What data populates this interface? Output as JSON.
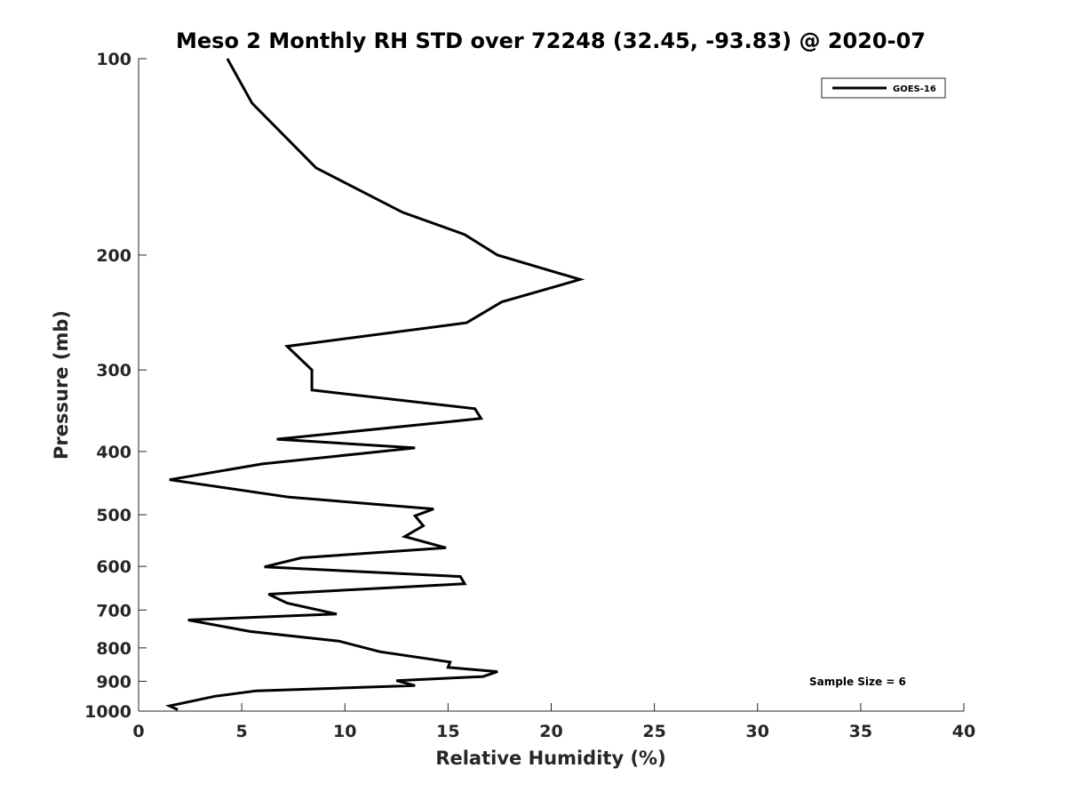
{
  "chart_data": {
    "type": "line",
    "title": "Meso 2 Monthly RH STD over 72248 (32.45, -93.83) @ 2020-07",
    "xlabel": "Relative Humidity (%)",
    "ylabel": "Pressure (mb)",
    "xlim": [
      0,
      40
    ],
    "ylim": [
      100,
      1000
    ],
    "y_scale": "log",
    "y_reversed": true,
    "x_ticks": [
      "0",
      "5",
      "10",
      "15",
      "20",
      "25",
      "30",
      "35",
      "40"
    ],
    "y_ticks": [
      "100",
      "200",
      "300",
      "400",
      "500",
      "600",
      "700",
      "800",
      "900",
      "1000"
    ],
    "grid": false,
    "legend_position": "top-right",
    "annotation": "Sample Size = 6",
    "series": [
      {
        "name": "GOES-16",
        "color": "#000000",
        "x": [
          4.3,
          5.5,
          8.6,
          12.8,
          15.8,
          17.4,
          21.4,
          17.6,
          15.9,
          7.2,
          8.4,
          8.4,
          16.3,
          16.6,
          6.7,
          13.4,
          6.0,
          1.5,
          7.3,
          14.3,
          13.4,
          13.8,
          12.9,
          14.9,
          7.9,
          6.1,
          15.6,
          15.8,
          6.3,
          7.2,
          9.6,
          2.4,
          5.4,
          9.7,
          11.7,
          15.1,
          15.0,
          17.4,
          16.7,
          12.5,
          13.4,
          5.7,
          3.7,
          1.5,
          1.9
        ],
        "y": [
          100,
          117,
          147,
          172,
          186,
          200,
          218,
          236,
          254,
          276,
          300,
          322,
          344,
          356,
          383,
          395,
          418,
          442,
          470,
          490,
          502,
          520,
          540,
          562,
          582,
          601,
          622,
          638,
          662,
          683,
          710,
          725,
          755,
          781,
          811,
          841,
          857,
          870,
          885,
          898,
          914,
          931,
          949,
          982,
          995
        ]
      }
    ]
  }
}
